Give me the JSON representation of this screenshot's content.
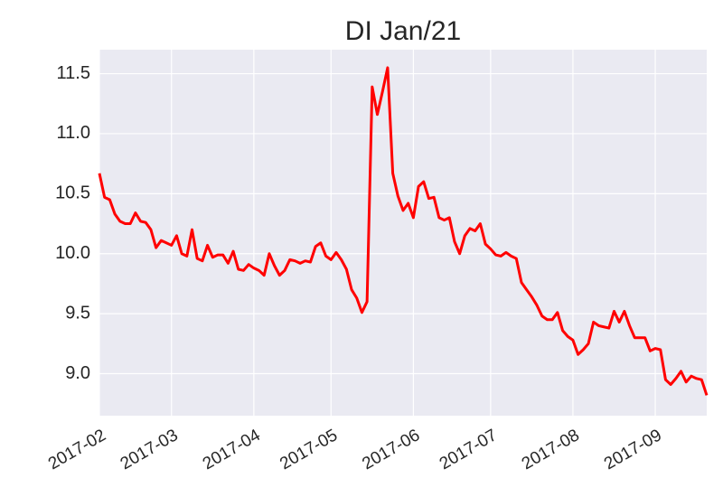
{
  "chart_data": {
    "type": "line",
    "title": "DI Jan/21",
    "categories": [
      "2017-02",
      null,
      null,
      null,
      null,
      null,
      null,
      null,
      null,
      null,
      null,
      null,
      null,
      null,
      "2017-03",
      null,
      null,
      null,
      null,
      null,
      null,
      null,
      null,
      null,
      null,
      null,
      null,
      null,
      null,
      null,
      "2017-04",
      null,
      null,
      null,
      null,
      null,
      null,
      null,
      null,
      null,
      null,
      null,
      null,
      null,
      null,
      "2017-05",
      null,
      null,
      null,
      null,
      null,
      null,
      null,
      null,
      null,
      null,
      null,
      null,
      null,
      null,
      null,
      "2017-06",
      null,
      null,
      null,
      null,
      null,
      null,
      null,
      null,
      null,
      null,
      null,
      null,
      null,
      null,
      "2017-07",
      null,
      null,
      null,
      null,
      null,
      null,
      null,
      null,
      null,
      null,
      null,
      null,
      null,
      null,
      null,
      "2017-08",
      null,
      null,
      null,
      null,
      null,
      null,
      null,
      null,
      null,
      null,
      null,
      null,
      null,
      null,
      null,
      "2017-09",
      null,
      null,
      null,
      null,
      null,
      null,
      null,
      null,
      null,
      null
    ],
    "values": [
      10.67,
      10.47,
      10.45,
      10.33,
      10.27,
      10.25,
      10.25,
      10.34,
      10.27,
      10.26,
      10.2,
      10.05,
      10.11,
      10.09,
      10.07,
      10.15,
      10.0,
      9.98,
      10.2,
      9.96,
      9.94,
      10.07,
      9.97,
      9.99,
      9.99,
      9.92,
      10.02,
      9.87,
      9.86,
      9.91,
      9.88,
      9.86,
      9.82,
      10.0,
      9.9,
      9.82,
      9.86,
      9.95,
      9.94,
      9.92,
      9.94,
      9.93,
      10.06,
      10.09,
      9.98,
      9.95,
      10.01,
      9.95,
      9.87,
      9.7,
      9.63,
      9.51,
      9.6,
      11.39,
      11.16,
      11.35,
      11.55,
      10.67,
      10.48,
      10.36,
      10.42,
      10.3,
      10.56,
      10.6,
      10.46,
      10.47,
      10.3,
      10.28,
      10.3,
      10.1,
      10.0,
      10.15,
      10.21,
      10.19,
      10.25,
      10.08,
      10.04,
      9.99,
      9.98,
      10.01,
      9.98,
      9.96,
      9.76,
      9.7,
      9.64,
      9.57,
      9.48,
      9.45,
      9.45,
      9.51,
      9.36,
      9.31,
      9.28,
      9.16,
      9.2,
      9.25,
      9.43,
      9.4,
      9.39,
      9.38,
      9.52,
      9.43,
      9.52,
      9.4,
      9.3,
      9.3,
      9.3,
      9.19,
      9.21,
      9.2,
      8.95,
      8.91,
      8.96,
      9.02,
      8.93,
      8.98,
      8.96,
      8.95,
      8.82
    ],
    "color": "#ff0000",
    "ylim": [
      8.65,
      11.7
    ],
    "yticks": [
      {
        "value": 9,
        "label": "9.0"
      },
      9.5,
      {
        "value": 10,
        "label": "10.0"
      },
      10.5,
      {
        "value": 11,
        "label": "11.0"
      },
      11.5
    ],
    "grid": true
  }
}
